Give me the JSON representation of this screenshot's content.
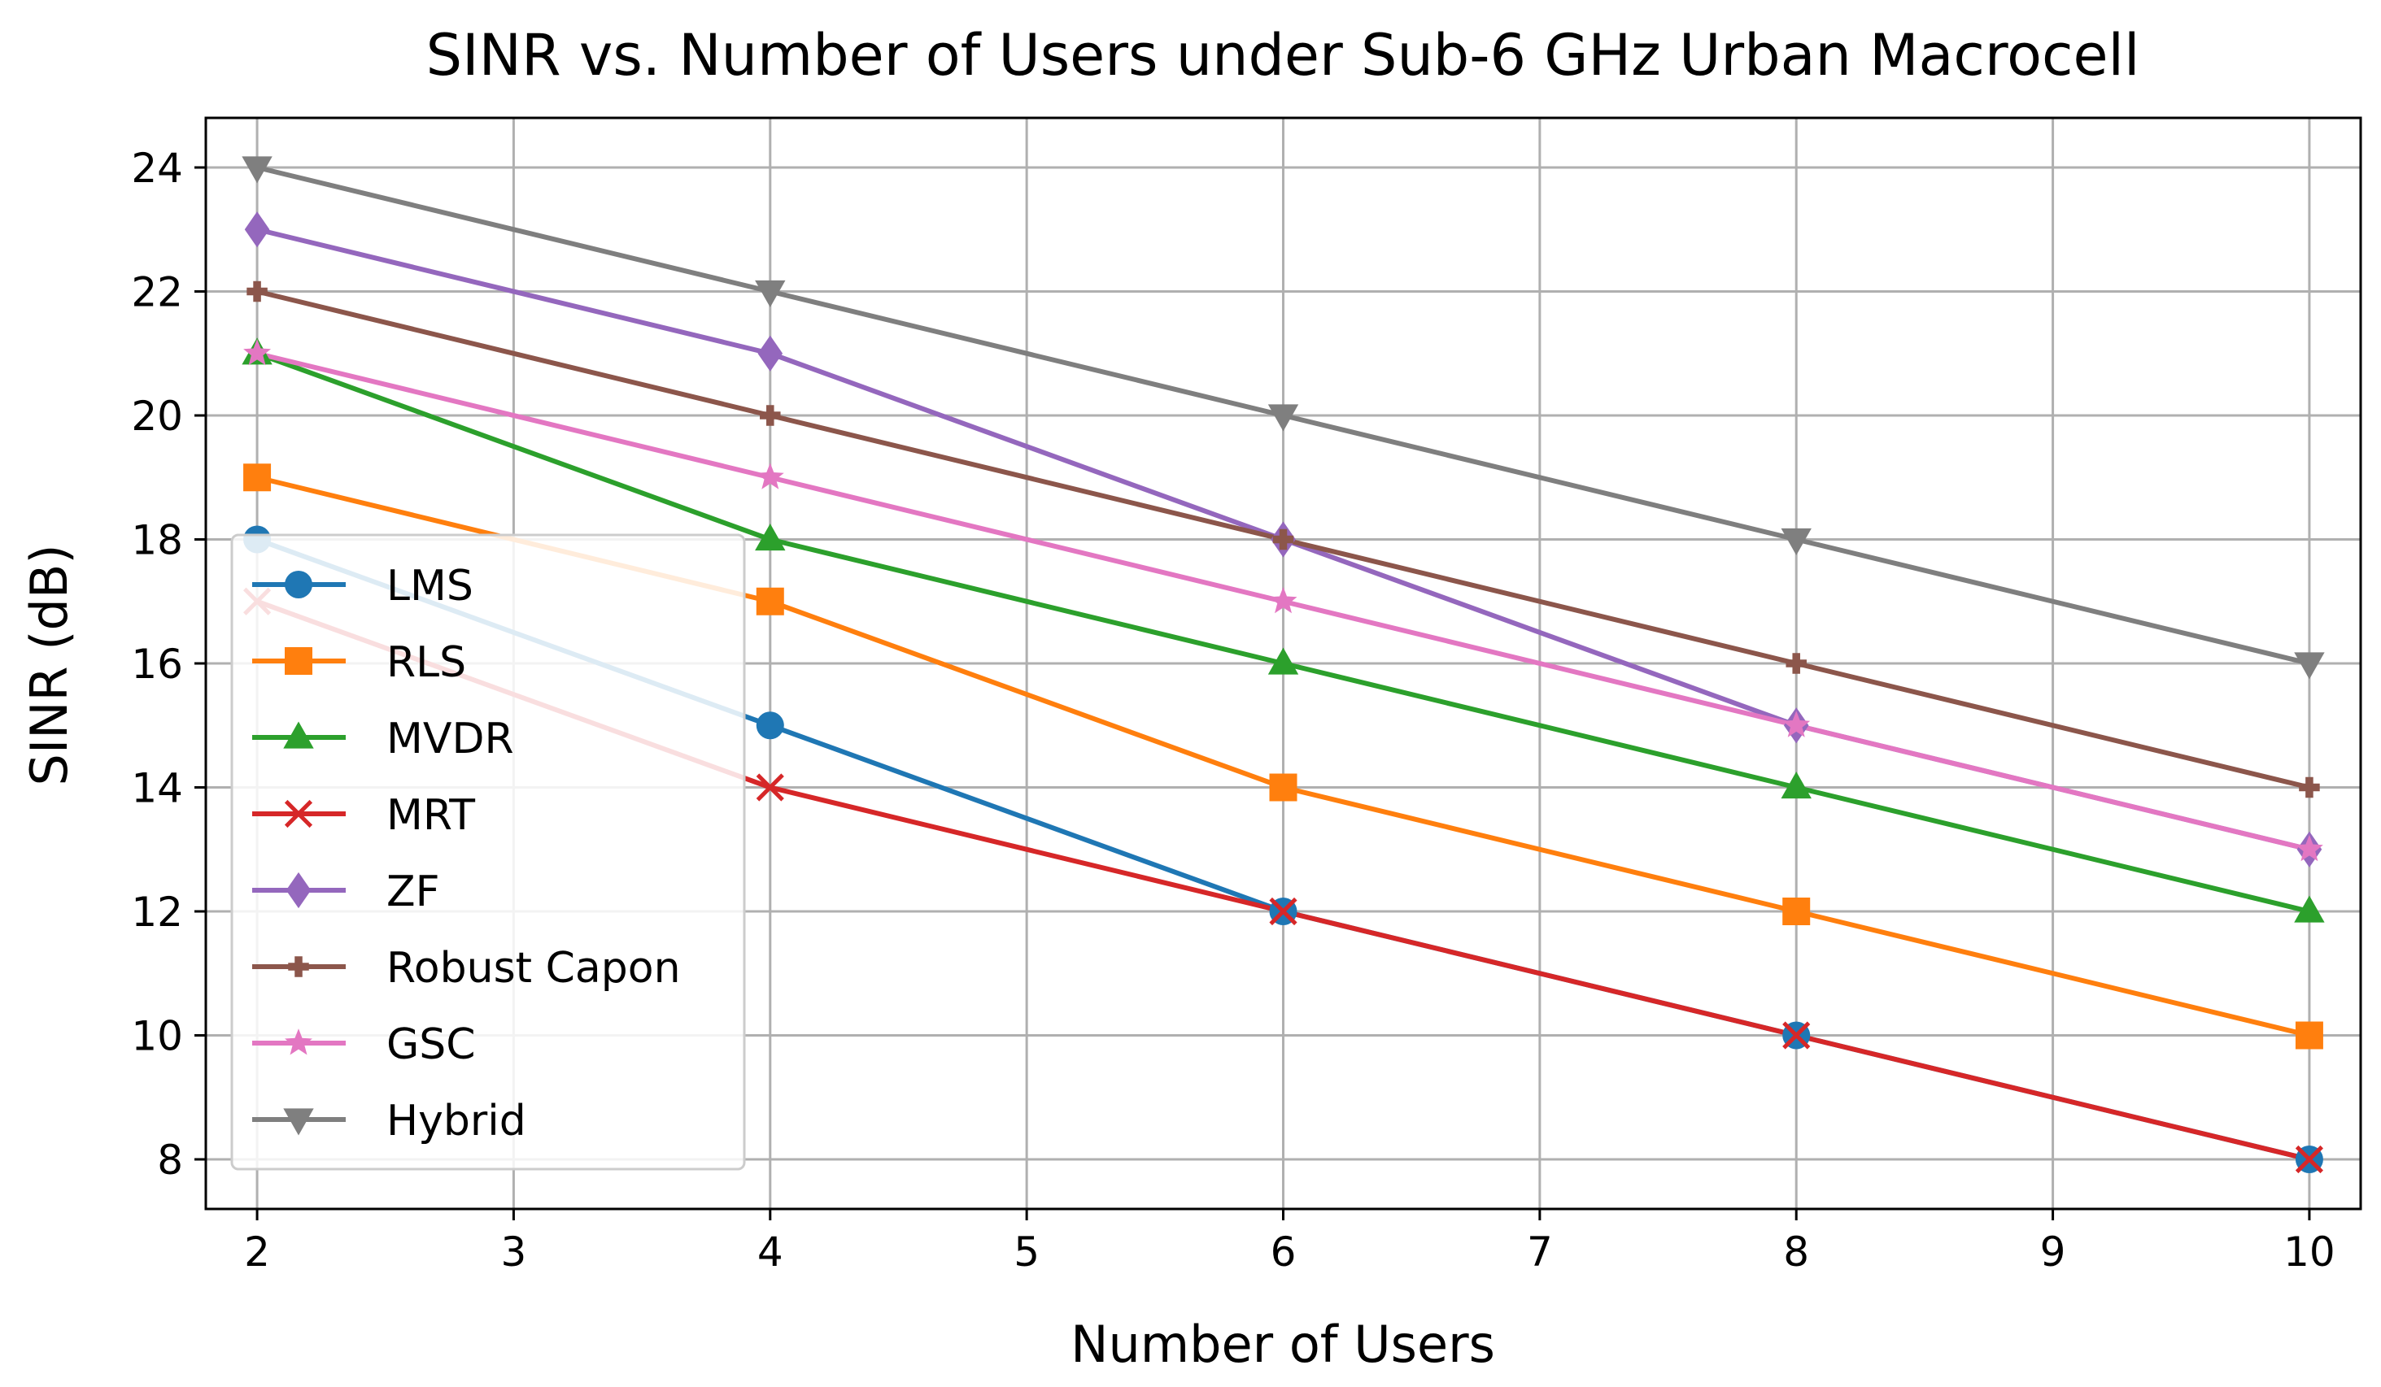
{
  "chart_data": {
    "type": "line",
    "title": "SINR vs. Number of Users under Sub-6 GHz Urban Macrocell",
    "xlabel": "Number of Users",
    "ylabel": "SINR (dB)",
    "xlim": [
      1.8,
      10.2
    ],
    "ylim": [
      7.2,
      24.8
    ],
    "xticks": [
      2,
      3,
      4,
      5,
      6,
      7,
      8,
      9,
      10
    ],
    "yticks": [
      8,
      10,
      12,
      14,
      16,
      18,
      20,
      22,
      24
    ],
    "grid": true,
    "legend_position": "lower-left",
    "x": [
      2,
      4,
      6,
      8,
      10
    ],
    "series": [
      {
        "name": "LMS",
        "values": [
          18,
          15,
          12,
          10,
          8
        ],
        "color": "#1f77b4",
        "marker": "circle"
      },
      {
        "name": "RLS",
        "values": [
          19,
          17,
          14,
          12,
          10
        ],
        "color": "#ff7f0e",
        "marker": "square"
      },
      {
        "name": "MVDR",
        "values": [
          21,
          18,
          16,
          14,
          12
        ],
        "color": "#2ca02c",
        "marker": "triangle-up"
      },
      {
        "name": "MRT",
        "values": [
          17,
          14,
          12,
          10,
          8
        ],
        "color": "#d62728",
        "marker": "x"
      },
      {
        "name": "ZF",
        "values": [
          23,
          21,
          18,
          15,
          13
        ],
        "color": "#9467bd",
        "marker": "diamond"
      },
      {
        "name": "Robust Capon",
        "values": [
          22,
          20,
          18,
          16,
          14
        ],
        "color": "#8c564b",
        "marker": "plus"
      },
      {
        "name": "GSC",
        "values": [
          21,
          19,
          17,
          15,
          13
        ],
        "color": "#e377c2",
        "marker": "star"
      },
      {
        "name": "Hybrid",
        "values": [
          24,
          22,
          20,
          18,
          16
        ],
        "color": "#7f7f7f",
        "marker": "triangle-down"
      }
    ]
  }
}
